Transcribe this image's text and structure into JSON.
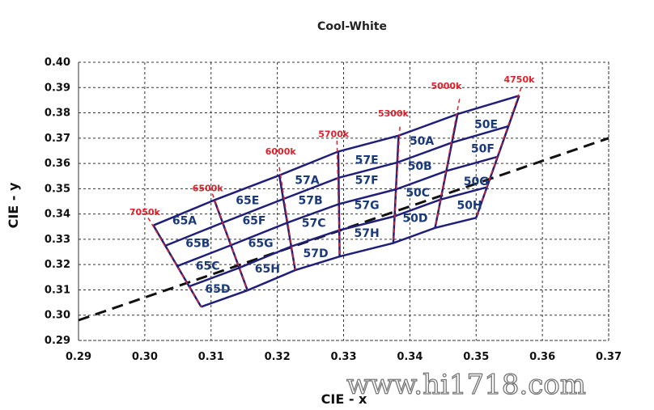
{
  "chart_data": {
    "type": "scatter",
    "title": "Cool-White",
    "xlabel": "CIE - x",
    "ylabel": "CIE - y",
    "xlim": [
      0.29,
      0.37
    ],
    "ylim": [
      0.29,
      0.4
    ],
    "x_ticks": [
      "0.29",
      "0.30",
      "0.31",
      "0.32",
      "0.33",
      "0.34",
      "0.35",
      "0.36",
      "0.37"
    ],
    "y_ticks": [
      "0.29",
      "0.30",
      "0.31",
      "0.32",
      "0.33",
      "0.34",
      "0.35",
      "0.36",
      "0.37",
      "0.38",
      "0.39",
      "0.40"
    ],
    "grid": "dashed",
    "colors": {
      "bin_lines": "#1f1f7a",
      "cct_dash": "#e0202a",
      "cct_label": "#e0202a",
      "bin_label": "#1b3a7a",
      "locus": "#000000"
    },
    "cct_columns": [
      {
        "label": "7050k",
        "top": [
          0.3013,
          0.3355
        ],
        "bottom": [
          0.3085,
          0.3033
        ],
        "label_at": [
          0.3,
          0.3395
        ],
        "marker_from": [
          0.3005,
          0.3385
        ]
      },
      {
        "label": "6500k",
        "top": [
          0.3105,
          0.3455
        ],
        "bottom": [
          0.3155,
          0.3098
        ],
        "label_at": [
          0.3095,
          0.349
        ],
        "marker_from": [
          0.3102,
          0.348
        ]
      },
      {
        "label": "6000k",
        "top": [
          0.3203,
          0.3553
        ],
        "bottom": [
          0.3227,
          0.3178
        ],
        "label_at": [
          0.3205,
          0.3635
        ],
        "marker_from": [
          0.3203,
          0.3585
        ]
      },
      {
        "label": "5700k",
        "top": [
          0.3292,
          0.3647
        ],
        "bottom": [
          0.3294,
          0.3232
        ],
        "label_at": [
          0.3285,
          0.3705
        ],
        "marker_from": [
          0.329,
          0.369
        ]
      },
      {
        "label": "5300k",
        "top": [
          0.3383,
          0.371
        ],
        "bottom": [
          0.3375,
          0.3285
        ],
        "label_at": [
          0.3375,
          0.3785
        ],
        "marker_from": [
          0.3385,
          0.3745
        ]
      },
      {
        "label": "5000k",
        "top": [
          0.3472,
          0.3795
        ],
        "bottom": [
          0.3438,
          0.3345
        ],
        "label_at": [
          0.3455,
          0.3895
        ],
        "marker_from": [
          0.3475,
          0.3855
        ]
      },
      {
        "label": "4750k",
        "top": [
          0.3565,
          0.3868
        ],
        "bottom": [
          0.35,
          0.3385
        ],
        "label_at": [
          0.3565,
          0.392
        ],
        "marker_from": [
          0.3568,
          0.39
        ]
      }
    ],
    "bin_labels": [
      {
        "label": "65A",
        "x": 0.306,
        "y": 0.3375
      },
      {
        "label": "65B",
        "x": 0.308,
        "y": 0.3285
      },
      {
        "label": "65C",
        "x": 0.3095,
        "y": 0.3195
      },
      {
        "label": "65D",
        "x": 0.311,
        "y": 0.3105
      },
      {
        "label": "65E",
        "x": 0.3155,
        "y": 0.3455
      },
      {
        "label": "65F",
        "x": 0.3165,
        "y": 0.3375
      },
      {
        "label": "65G",
        "x": 0.3175,
        "y": 0.3285
      },
      {
        "label": "65H",
        "x": 0.3185,
        "y": 0.3185
      },
      {
        "label": "57A",
        "x": 0.3245,
        "y": 0.3535
      },
      {
        "label": "57B",
        "x": 0.325,
        "y": 0.3455
      },
      {
        "label": "57C",
        "x": 0.3255,
        "y": 0.3365
      },
      {
        "label": "57D",
        "x": 0.3258,
        "y": 0.3245
      },
      {
        "label": "57E",
        "x": 0.3335,
        "y": 0.3615
      },
      {
        "label": "57F",
        "x": 0.3335,
        "y": 0.3535
      },
      {
        "label": "57G",
        "x": 0.3335,
        "y": 0.3435
      },
      {
        "label": "57H",
        "x": 0.3335,
        "y": 0.3325
      },
      {
        "label": "50A",
        "x": 0.3418,
        "y": 0.369
      },
      {
        "label": "50B",
        "x": 0.3415,
        "y": 0.359
      },
      {
        "label": "50C",
        "x": 0.3412,
        "y": 0.3485
      },
      {
        "label": "50D",
        "x": 0.3408,
        "y": 0.3385
      },
      {
        "label": "50E",
        "x": 0.3515,
        "y": 0.3755
      },
      {
        "label": "50F",
        "x": 0.351,
        "y": 0.366
      },
      {
        "label": "50G",
        "x": 0.35,
        "y": 0.353
      },
      {
        "label": "50H",
        "x": 0.349,
        "y": 0.3435
      }
    ],
    "planckian_locus": [
      [
        0.29,
        0.298
      ],
      [
        0.37,
        0.37
      ]
    ]
  },
  "watermark": "www.hi1718.com"
}
